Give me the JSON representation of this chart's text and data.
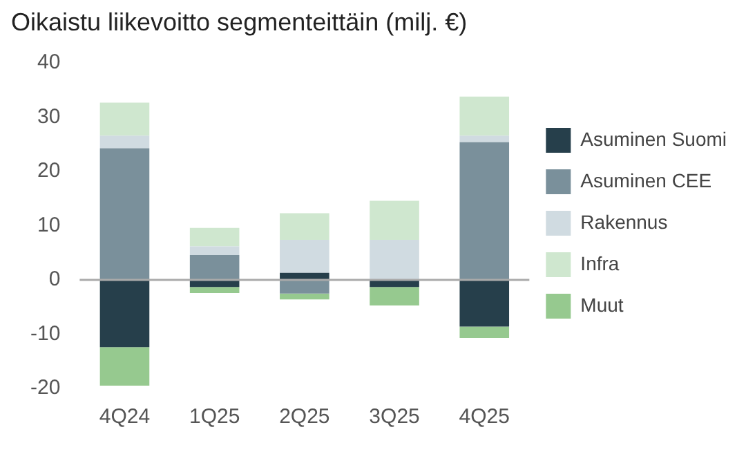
{
  "chart_data": {
    "type": "bar",
    "title": "Oikaistu liikevoitto segmenteittäin (milj. €)",
    "categories": [
      "4Q24",
      "1Q25",
      "2Q25",
      "3Q25",
      "4Q25"
    ],
    "stacked": true,
    "legend": "right",
    "ylim": [
      -20,
      40
    ],
    "yticks": [
      -20,
      -10,
      0,
      10,
      20,
      30,
      40
    ],
    "grid": false,
    "ref_lines": [
      {
        "axis": "y",
        "value": 0,
        "color": "#aaaaaa"
      }
    ],
    "series": [
      {
        "name": "Asuminen Suomi",
        "color": "#263f4b",
        "values": [
          -12.4,
          -1.3,
          1.3,
          -1.3,
          -8.6
        ]
      },
      {
        "name": "Asuminen CEE",
        "color": "#7a909b",
        "values": [
          24.3,
          4.6,
          -2.5,
          0,
          25.4
        ]
      },
      {
        "name": "Rakennus",
        "color": "#d0dbe1",
        "values": [
          2.3,
          1.6,
          6.1,
          7.4,
          1.2
        ]
      },
      {
        "name": "Infra",
        "color": "#cfe7cf",
        "values": [
          6.1,
          3.4,
          4.9,
          7.2,
          7.2
        ]
      },
      {
        "name": "Muut",
        "color": "#96c98f",
        "values": [
          -7.1,
          -1.1,
          -1.1,
          -3.4,
          -2.1
        ]
      }
    ]
  }
}
